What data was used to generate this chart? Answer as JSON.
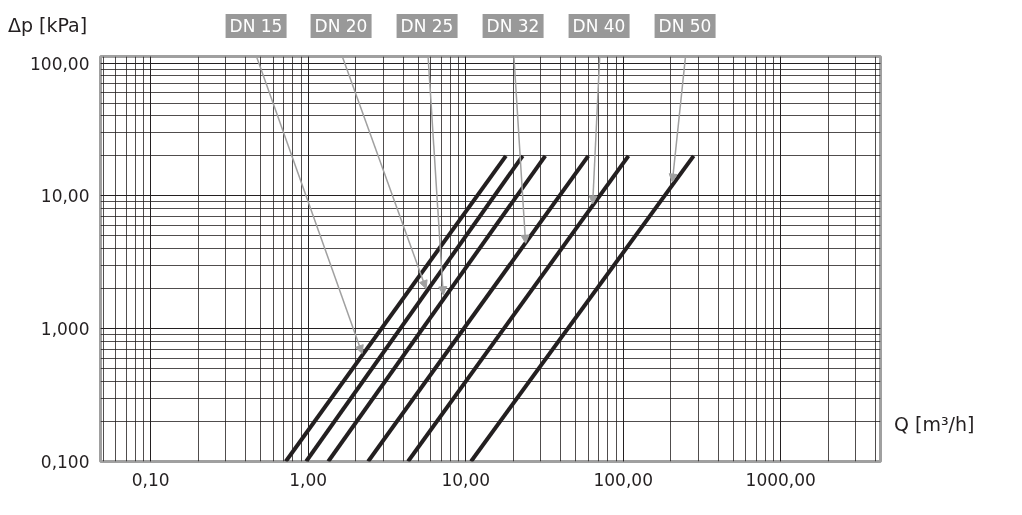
{
  "chart_data": {
    "type": "line",
    "xlabel": "Q [m³/h]",
    "ylabel": "Δp [kPa]",
    "log": "xy",
    "grid": true,
    "marker": "none",
    "line_style": "solid",
    "xlim": [
      0.048,
      4300
    ],
    "ylim": [
      0.1,
      112
    ],
    "xticks": [
      {
        "value": 0.1,
        "label": "0,10"
      },
      {
        "value": 1,
        "label": "1,00"
      },
      {
        "value": 10,
        "label": "10,00"
      },
      {
        "value": 100,
        "label": "100,00"
      },
      {
        "value": 1000,
        "label": "1000,00"
      }
    ],
    "yticks": [
      {
        "value": 0.1,
        "label": "0,100"
      },
      {
        "value": 1,
        "label": "1,000"
      },
      {
        "value": 10,
        "label": "10,00"
      },
      {
        "value": 100,
        "label": "100,00"
      }
    ],
    "series": [
      {
        "color": "#231f20",
        "x": [
          0.72,
          18
        ],
        "values": [
          0.1,
          20
        ]
      },
      {
        "color": "#231f20",
        "x": [
          0.97,
          23
        ],
        "values": [
          0.1,
          20
        ]
      },
      {
        "color": "#231f20",
        "x": [
          1.34,
          32
        ],
        "values": [
          0.1,
          20
        ]
      },
      {
        "color": "#231f20",
        "x": [
          2.4,
          60
        ],
        "values": [
          0.1,
          20
        ]
      },
      {
        "color": "#231f20",
        "x": [
          4.3,
          108
        ],
        "values": [
          0.1,
          20
        ]
      },
      {
        "color": "#231f20",
        "x": [
          10.8,
          280
        ],
        "values": [
          0.1,
          20
        ]
      }
    ],
    "annotations": [
      {
        "text": "DN 15",
        "x": 2.2,
        "y": 0.65
      },
      {
        "text": "DN 20",
        "x": 5.6,
        "y": 2.0
      },
      {
        "text": "DN 25",
        "x": 7.2,
        "y": 1.8
      },
      {
        "text": "DN 32",
        "x": 24,
        "y": 4.4
      },
      {
        "text": "DN 40",
        "x": 64,
        "y": 8.7
      },
      {
        "text": "DN 50",
        "x": 205,
        "y": 12.7
      }
    ]
  }
}
